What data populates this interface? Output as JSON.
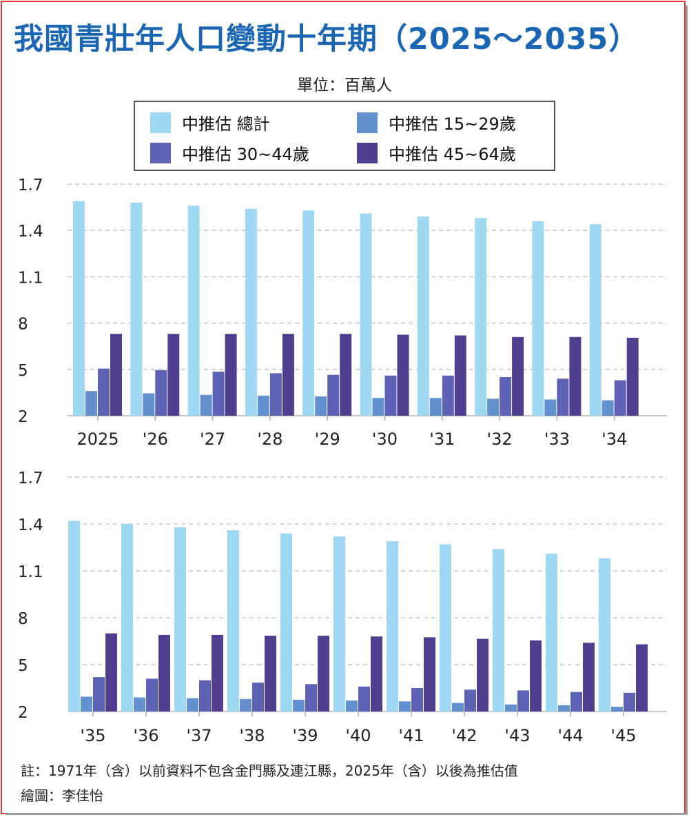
{
  "title": "我國青壯年人口變動十年期（2025～2035）",
  "unit": "單位：百萬人",
  "colors": {
    "total": "#9fd8f3",
    "age_15_29": "#6390cf",
    "age_30_44": "#5d62b5",
    "age_45_64": "#4f3f8e",
    "frame": "#e8383d",
    "title": "#1a66b3"
  },
  "legend": [
    {
      "label": "中推估  總計",
      "color": "#9fd8f3"
    },
    {
      "label": "中推估  15~29歲",
      "color": "#6390cf"
    },
    {
      "label": "中推估  30~44歲",
      "color": "#5d62b5"
    },
    {
      "label": "中推估  45~64歲",
      "color": "#4f3f8e"
    }
  ],
  "chart_data": [
    {
      "type": "bar",
      "categories": [
        "2025",
        "'26",
        "'27",
        "'28",
        "'29",
        "'30",
        "'31",
        "'32",
        "'33",
        "'34"
      ],
      "y_tick_labels": [
        "2",
        "5",
        "8",
        "1.1",
        "1.4",
        "1.7"
      ],
      "ylim": [
        2,
        17
      ],
      "grid": true,
      "series": [
        {
          "name": "中推估  總計",
          "values": [
            15.9,
            15.8,
            15.6,
            15.4,
            15.3,
            15.1,
            14.9,
            14.8,
            14.6,
            14.4
          ]
        },
        {
          "name": "中推估  15~29歲",
          "values": [
            3.6,
            3.45,
            3.35,
            3.3,
            3.25,
            3.15,
            3.15,
            3.1,
            3.05,
            3.0
          ]
        },
        {
          "name": "中推估  30~44歲",
          "values": [
            5.05,
            4.95,
            4.85,
            4.75,
            4.65,
            4.6,
            4.6,
            4.5,
            4.4,
            4.3
          ]
        },
        {
          "name": "中推估  45~64歲",
          "values": [
            7.3,
            7.3,
            7.3,
            7.3,
            7.3,
            7.25,
            7.2,
            7.1,
            7.1,
            7.05
          ]
        }
      ]
    },
    {
      "type": "bar",
      "categories": [
        "'35",
        "'36",
        "'37",
        "'38",
        "'39",
        "'40",
        "'41",
        "'42",
        "'43",
        "'44",
        "'45"
      ],
      "y_tick_labels": [
        "2",
        "5",
        "8",
        "1.1",
        "1.4",
        "1.7"
      ],
      "ylim": [
        2,
        17
      ],
      "grid": true,
      "series": [
        {
          "name": "中推估  總計",
          "values": [
            14.2,
            14.0,
            13.8,
            13.6,
            13.4,
            13.2,
            12.9,
            12.7,
            12.4,
            12.1,
            11.8
          ]
        },
        {
          "name": "中推估  15~29歲",
          "values": [
            2.95,
            2.9,
            2.85,
            2.8,
            2.75,
            2.7,
            2.65,
            2.55,
            2.45,
            2.4,
            2.3
          ]
        },
        {
          "name": "中推估  30~44歲",
          "values": [
            4.2,
            4.1,
            4.0,
            3.85,
            3.75,
            3.6,
            3.5,
            3.4,
            3.35,
            3.25,
            3.2
          ]
        },
        {
          "name": "中推估  45~64歲",
          "values": [
            7.0,
            6.9,
            6.9,
            6.85,
            6.85,
            6.8,
            6.75,
            6.65,
            6.55,
            6.4,
            6.3
          ]
        }
      ]
    }
  ],
  "footnotes": {
    "note": "註：1971年（含）以前資料不包含金門縣及連江縣，2025年（含）以後為推估值",
    "credit": "繪圖：李佳怡"
  }
}
